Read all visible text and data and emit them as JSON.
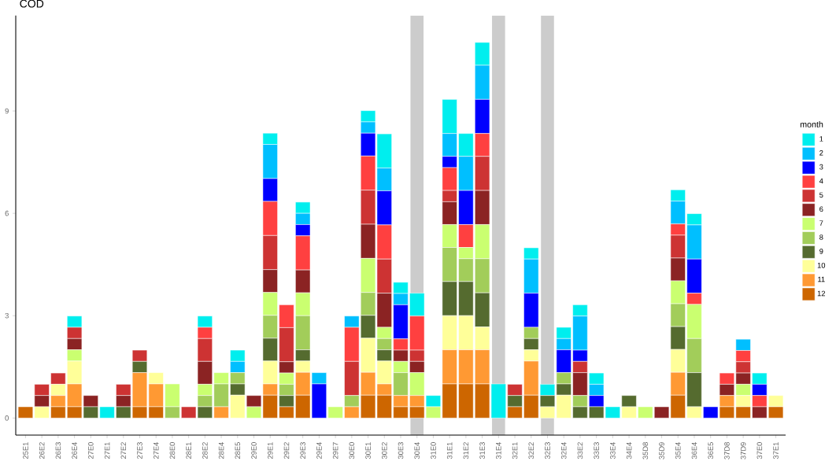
{
  "chart_data": {
    "type": "bar",
    "stacked": true,
    "title": "COD",
    "legend_title": "month",
    "legend": "right",
    "grid": false,
    "categories": [
      "25E1",
      "26E2",
      "26E3",
      "26E4",
      "27E0",
      "27E1",
      "27E2",
      "27E3",
      "27E4",
      "28E0",
      "28E1",
      "28E2",
      "28E4",
      "28E5",
      "29E0",
      "29E1",
      "29E2",
      "29E3",
      "29E4",
      "29E7",
      "30E0",
      "30E1",
      "30E2",
      "30E3",
      "30E4",
      "31E0",
      "31E1",
      "31E2",
      "31E3",
      "31E4",
      "32E1",
      "32E2",
      "32E3",
      "32E4",
      "33E2",
      "33E3",
      "33E4",
      "34E4",
      "35D8",
      "35D9",
      "35E4",
      "36E4",
      "36E5",
      "37D8",
      "37D9",
      "37E0",
      "37E1"
    ],
    "ylim": [
      -0.5,
      11.8
    ],
    "yticks": [
      0,
      3,
      6,
      9
    ],
    "bands": [
      {
        "axis": "x",
        "from": "30E4",
        "to": "30E4",
        "color": "#cccccc"
      },
      {
        "axis": "x",
        "from": "31E4",
        "to": "31E4",
        "color": "#cccccc"
      },
      {
        "axis": "x",
        "from": "32E3",
        "to": "32E3",
        "color": "#cccccc"
      }
    ],
    "series": [
      {
        "name": "12",
        "color": "#cd6600",
        "values": [
          0.33,
          null,
          0.33,
          0.33,
          null,
          null,
          null,
          0.33,
          0.33,
          null,
          null,
          null,
          null,
          null,
          null,
          0.67,
          0.33,
          0.67,
          null,
          null,
          null,
          0.67,
          0.67,
          0.33,
          0.33,
          null,
          1,
          1,
          1,
          null,
          0.33,
          0.67,
          null,
          null,
          null,
          null,
          null,
          null,
          null,
          null,
          0.67,
          null,
          null,
          0.33,
          0.33,
          null,
          0.33
        ]
      },
      {
        "name": "11",
        "color": "#ff9933",
        "values": [
          null,
          null,
          0.33,
          0.67,
          null,
          null,
          null,
          1,
          0.67,
          null,
          null,
          null,
          0.33,
          null,
          null,
          0.33,
          null,
          0.67,
          null,
          null,
          0.33,
          0.67,
          0.33,
          0.33,
          0.33,
          null,
          1,
          1,
          1,
          null,
          null,
          1,
          null,
          null,
          null,
          null,
          null,
          null,
          null,
          null,
          0.67,
          null,
          null,
          0.33,
          null,
          null,
          null
        ]
      },
      {
        "name": "10",
        "color": "#ffff99",
        "values": [
          null,
          0.33,
          0.33,
          0.67,
          null,
          null,
          null,
          null,
          0.33,
          null,
          null,
          null,
          null,
          0.67,
          null,
          0.67,
          null,
          0.33,
          null,
          null,
          null,
          1,
          0.67,
          null,
          null,
          null,
          1,
          1,
          0.67,
          null,
          null,
          0.33,
          0.33,
          0.67,
          null,
          null,
          null,
          0.33,
          null,
          null,
          0.67,
          0.33,
          null,
          null,
          0.33,
          null,
          0.33
        ]
      },
      {
        "name": "9",
        "color": "#556b2f",
        "values": [
          null,
          null,
          null,
          null,
          0.33,
          null,
          0.33,
          0.33,
          null,
          null,
          null,
          0.33,
          null,
          0.33,
          null,
          0.67,
          0.33,
          0.33,
          null,
          null,
          null,
          0.67,
          0.33,
          null,
          null,
          null,
          1,
          1,
          1,
          null,
          0.33,
          0.33,
          0.33,
          0.33,
          0.33,
          0.33,
          null,
          0.33,
          null,
          null,
          0.67,
          1,
          null,
          null,
          null,
          null,
          null
        ]
      },
      {
        "name": "8",
        "color": "#a2cd5a",
        "values": [
          null,
          null,
          null,
          null,
          null,
          null,
          null,
          null,
          null,
          0.33,
          null,
          0.33,
          0.67,
          0.33,
          null,
          0.67,
          0.33,
          1,
          null,
          null,
          0.33,
          0.67,
          0.33,
          0.67,
          null,
          null,
          1,
          0.67,
          1,
          null,
          null,
          0.33,
          null,
          0.33,
          0.33,
          null,
          null,
          null,
          null,
          null,
          0.67,
          1,
          null,
          null,
          null,
          null,
          null
        ]
      },
      {
        "name": "7",
        "color": "#caff70",
        "values": [
          null,
          null,
          null,
          0.33,
          null,
          null,
          null,
          null,
          null,
          0.67,
          null,
          0.33,
          0.33,
          null,
          0.33,
          0.67,
          0.33,
          0.67,
          null,
          0.33,
          null,
          1,
          0.33,
          0.33,
          0.67,
          0.33,
          0.67,
          0.33,
          1,
          null,
          null,
          null,
          null,
          null,
          null,
          null,
          null,
          null,
          0.33,
          null,
          0.67,
          1,
          null,
          null,
          0.33,
          null,
          null
        ]
      },
      {
        "name": "6",
        "color": "#8b2323",
        "values": [
          null,
          0.33,
          null,
          0.33,
          0.33,
          null,
          0.33,
          null,
          null,
          null,
          null,
          0.67,
          null,
          null,
          0.33,
          0.67,
          0.33,
          0.67,
          null,
          null,
          null,
          1,
          1,
          0.33,
          0.33,
          null,
          0.67,
          null,
          1,
          null,
          null,
          null,
          null,
          null,
          0.67,
          null,
          null,
          null,
          null,
          0.33,
          0.67,
          null,
          null,
          0.33,
          0.33,
          0.33,
          null
        ]
      },
      {
        "name": "5",
        "color": "#cd3333",
        "values": [
          null,
          0.33,
          0.33,
          0.33,
          null,
          null,
          0.33,
          0.33,
          null,
          null,
          0.33,
          0.67,
          null,
          null,
          null,
          1,
          1,
          null,
          null,
          null,
          1,
          1,
          1,
          null,
          0.33,
          null,
          0.33,
          null,
          1,
          null,
          0.33,
          null,
          null,
          null,
          0.33,
          null,
          null,
          null,
          null,
          null,
          0.67,
          null,
          null,
          null,
          0.33,
          null,
          null
        ]
      },
      {
        "name": "4",
        "color": "#ff4040",
        "values": [
          null,
          null,
          null,
          null,
          null,
          null,
          null,
          null,
          null,
          null,
          null,
          0.33,
          null,
          null,
          null,
          1,
          0.67,
          1,
          null,
          null,
          1,
          1,
          1,
          0.33,
          1,
          null,
          0.67,
          0.67,
          0.67,
          null,
          null,
          null,
          null,
          null,
          null,
          null,
          null,
          null,
          null,
          null,
          0.33,
          0.33,
          null,
          0.33,
          0.33,
          0.33,
          null
        ]
      },
      {
        "name": "3",
        "color": "#0000ff",
        "values": [
          null,
          null,
          null,
          null,
          null,
          null,
          null,
          null,
          null,
          null,
          null,
          null,
          null,
          null,
          null,
          0.67,
          null,
          0.33,
          1,
          null,
          null,
          0.67,
          1,
          1,
          null,
          null,
          0.33,
          1,
          1,
          null,
          null,
          1,
          null,
          0.67,
          0.33,
          0.33,
          null,
          null,
          null,
          null,
          null,
          1,
          0.33,
          null,
          null,
          0.33,
          null
        ]
      },
      {
        "name": "2",
        "color": "#00bfff",
        "values": [
          null,
          null,
          null,
          null,
          null,
          null,
          null,
          null,
          null,
          null,
          null,
          null,
          null,
          0.33,
          null,
          1,
          null,
          0.33,
          0.33,
          null,
          0.33,
          0.33,
          0.67,
          0.33,
          null,
          null,
          0.67,
          1,
          1,
          null,
          null,
          1,
          null,
          0.33,
          1,
          0.33,
          null,
          null,
          null,
          null,
          0.67,
          1,
          null,
          null,
          0.33,
          null,
          null
        ]
      },
      {
        "name": "1",
        "color": "#00eeee",
        "values": [
          null,
          null,
          null,
          0.33,
          null,
          0.33,
          null,
          null,
          null,
          null,
          null,
          0.33,
          null,
          0.33,
          null,
          0.33,
          null,
          0.33,
          null,
          null,
          null,
          0.33,
          1,
          0.33,
          0.67,
          0.33,
          1,
          0.67,
          0.67,
          1,
          null,
          0.33,
          0.33,
          0.33,
          0.33,
          0.33,
          0.33,
          null,
          null,
          null,
          0.33,
          0.33,
          null,
          null,
          null,
          0.33,
          null
        ]
      }
    ]
  }
}
